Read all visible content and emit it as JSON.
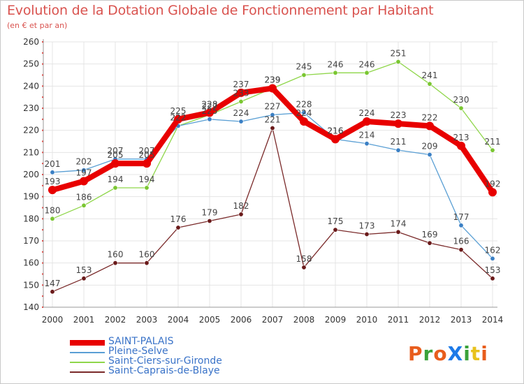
{
  "header": {
    "title": "Evolution de la Dotation Globale de Fonctionnement par Habitant",
    "subtitle": "(en € et par an)"
  },
  "logo": {
    "text": "ProXiti",
    "colors": [
      "#e85d1d",
      "#3aa23a",
      "#e85d1d",
      "#1d7ae8",
      "#3aa23a",
      "#e8c21d",
      "#e85d1d"
    ]
  },
  "chart_data": {
    "type": "line",
    "title": "Evolution de la Dotation Globale de Fonctionnement par Habitant",
    "subtitle": "(en € et par an)",
    "x": [
      "2000",
      "2001",
      "2002",
      "2003",
      "2004",
      "2005",
      "2006",
      "2007",
      "2008",
      "2009",
      "2010",
      "2011",
      "2012",
      "2013",
      "2014"
    ],
    "ylim": [
      140,
      260
    ],
    "yticks": [
      140,
      150,
      160,
      170,
      180,
      190,
      200,
      210,
      220,
      230,
      240,
      250,
      260
    ],
    "grid": true,
    "legend_position": "bottom-left",
    "series": [
      {
        "name": "SAINT-PALAIS",
        "color": "#e80000",
        "marker": "#e80000",
        "width": 8,
        "values": [
          193,
          197,
          205,
          205,
          225,
          228,
          237,
          239,
          224,
          216,
          224,
          223,
          222,
          213,
          192
        ]
      },
      {
        "name": "Pleine-Selve",
        "color": "#5a9fd4",
        "marker": "#3a7fc4",
        "width": 1.3,
        "values": [
          201,
          202,
          207,
          207,
          222,
          225,
          224,
          227,
          228,
          216,
          214,
          211,
          209,
          177,
          162
        ]
      },
      {
        "name": "Saint-Ciers-sur-Gironde",
        "color": "#8fd64a",
        "marker": "#7ac631",
        "width": 1.3,
        "values": [
          180,
          186,
          194,
          194,
          222,
          227,
          233,
          239,
          245,
          246,
          246,
          251,
          241,
          230,
          211
        ]
      },
      {
        "name": "Saint-Caprais-de-Blaye",
        "color": "#7a2a2a",
        "marker": "#6a1a1a",
        "width": 1.3,
        "values": [
          147,
          153,
          160,
          160,
          176,
          179,
          182,
          221,
          158,
          175,
          173,
          174,
          169,
          166,
          153
        ]
      }
    ]
  }
}
